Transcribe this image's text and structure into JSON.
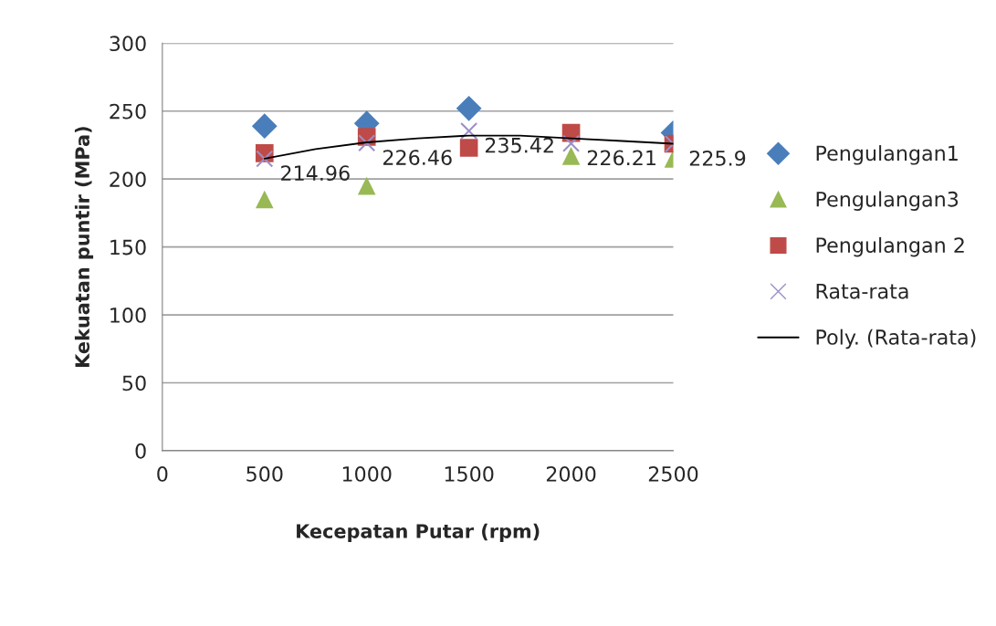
{
  "chart_data": {
    "type": "scatter",
    "xlabel": "Kecepatan Putar (rpm)",
    "ylabel": "Kekuatan puntir (MPa)",
    "x": [
      500,
      1000,
      1500,
      2000,
      2500
    ],
    "series": [
      {
        "name": "Pengulangan1",
        "color": "#4a7ebb",
        "marker": "diamond",
        "values": [
          239,
          241,
          252,
          null,
          234
        ]
      },
      {
        "name": "Pengulangan3",
        "color": "#98b954",
        "marker": "triangle",
        "values": [
          185,
          195,
          null,
          217,
          215
        ]
      },
      {
        "name": "Pengulangan 2",
        "color": "#be4b48",
        "marker": "square",
        "values": [
          219,
          231,
          223,
          234,
          226
        ]
      },
      {
        "name": "Rata-rata",
        "color": "#9c8fc7",
        "marker": "cross",
        "values": [
          214.96,
          226.46,
          235.42,
          226.21,
          225.9
        ],
        "value_labels": [
          "214.96",
          "226.46",
          "235.42",
          "226.21",
          "225.9"
        ]
      },
      {
        "name": "Poly. (Rata-rata)",
        "type": "line",
        "color": "#000000",
        "marker": "none",
        "x": [
          500,
          750,
          1000,
          1250,
          1500,
          1750,
          2000,
          2250,
          2500
        ],
        "values": [
          215,
          222,
          227,
          230,
          232,
          232,
          230,
          228,
          226
        ]
      }
    ],
    "xlim": [
      0,
      2500
    ],
    "xticks": [
      0,
      500,
      1000,
      1500,
      2000,
      2500
    ],
    "ylim": [
      0,
      300
    ],
    "yticks": [
      0,
      50,
      100,
      150,
      200,
      250,
      300
    ],
    "grid": "y",
    "legend": "right"
  }
}
